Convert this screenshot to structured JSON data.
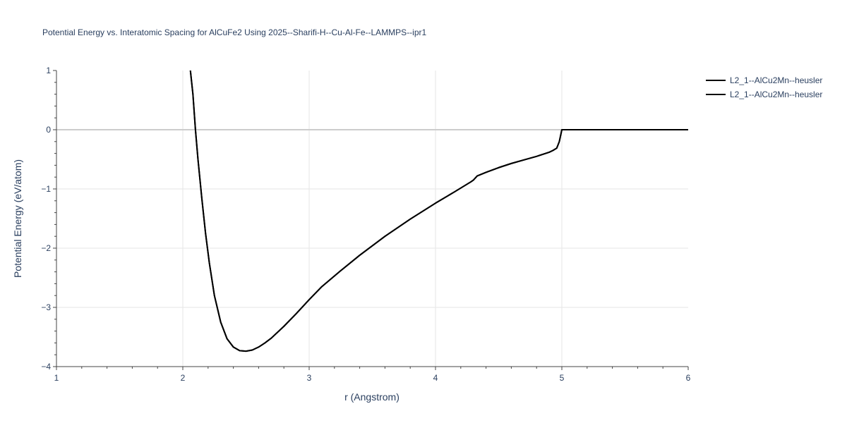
{
  "chart_data": {
    "type": "line",
    "title": "Potential Energy vs. Interatomic Spacing for AlCuFe2 Using 2025--Sharifi-H--Cu-Al-Fe--LAMMPS--ipr1",
    "xlabel": "r (Angstrom)",
    "ylabel": "Potential Energy (eV/atom)",
    "xlim": [
      1,
      6
    ],
    "ylim": [
      -4,
      1
    ],
    "x_ticks": [
      "1",
      "2",
      "3",
      "4",
      "5",
      "6"
    ],
    "y_ticks": [
      "1",
      "0",
      "−1",
      "−2",
      "−3",
      "−4"
    ],
    "grid": true,
    "legend_position": "top-right",
    "colors": {
      "line": "#000000",
      "grid": "#e5e5e5",
      "zeroline": "#cccccc",
      "text": "#2a3f5f"
    },
    "series": [
      {
        "name": "L2_1--AlCu2Mn--heusler",
        "x": [
          2.06,
          2.08,
          2.1,
          2.12,
          2.15,
          2.18,
          2.21,
          2.25,
          2.3,
          2.35,
          2.4,
          2.45,
          2.5,
          2.55,
          2.6,
          2.65,
          2.7,
          2.8,
          2.9,
          3.0,
          3.1,
          3.25,
          3.4,
          3.6,
          3.8,
          4.0,
          4.15,
          4.28,
          4.3,
          4.33,
          4.4,
          4.5,
          4.6,
          4.7,
          4.8,
          4.9,
          4.93,
          4.96,
          4.98,
          5.0,
          5.5,
          6.0
        ],
        "y": [
          1.0,
          0.6,
          0.0,
          -0.5,
          -1.15,
          -1.75,
          -2.25,
          -2.8,
          -3.25,
          -3.53,
          -3.67,
          -3.73,
          -3.74,
          -3.72,
          -3.67,
          -3.6,
          -3.52,
          -3.32,
          -3.1,
          -2.87,
          -2.65,
          -2.38,
          -2.12,
          -1.8,
          -1.51,
          -1.24,
          -1.05,
          -0.88,
          -0.85,
          -0.78,
          -0.72,
          -0.64,
          -0.57,
          -0.51,
          -0.45,
          -0.38,
          -0.35,
          -0.31,
          -0.2,
          0.0,
          0.0,
          0.0
        ]
      },
      {
        "name": "L2_1--AlCu2Mn--heusler",
        "x": [
          2.06,
          2.08,
          2.1,
          2.12,
          2.15,
          2.18,
          2.21,
          2.25,
          2.3,
          2.35,
          2.4,
          2.45,
          2.5,
          2.55,
          2.6,
          2.65,
          2.7,
          2.8,
          2.9,
          3.0,
          3.1,
          3.25,
          3.4,
          3.6,
          3.8,
          4.0,
          4.15,
          4.28,
          4.3,
          4.33,
          4.4,
          4.5,
          4.6,
          4.7,
          4.8,
          4.9,
          4.93,
          4.96,
          4.98,
          5.0,
          5.5,
          6.0
        ],
        "y": [
          1.0,
          0.6,
          0.0,
          -0.5,
          -1.15,
          -1.75,
          -2.25,
          -2.8,
          -3.25,
          -3.53,
          -3.67,
          -3.73,
          -3.74,
          -3.72,
          -3.67,
          -3.6,
          -3.52,
          -3.32,
          -3.1,
          -2.87,
          -2.65,
          -2.38,
          -2.12,
          -1.8,
          -1.51,
          -1.24,
          -1.05,
          -0.88,
          -0.85,
          -0.78,
          -0.72,
          -0.64,
          -0.57,
          -0.51,
          -0.45,
          -0.38,
          -0.35,
          -0.31,
          -0.2,
          0.0,
          0.0,
          0.0
        ]
      }
    ]
  }
}
